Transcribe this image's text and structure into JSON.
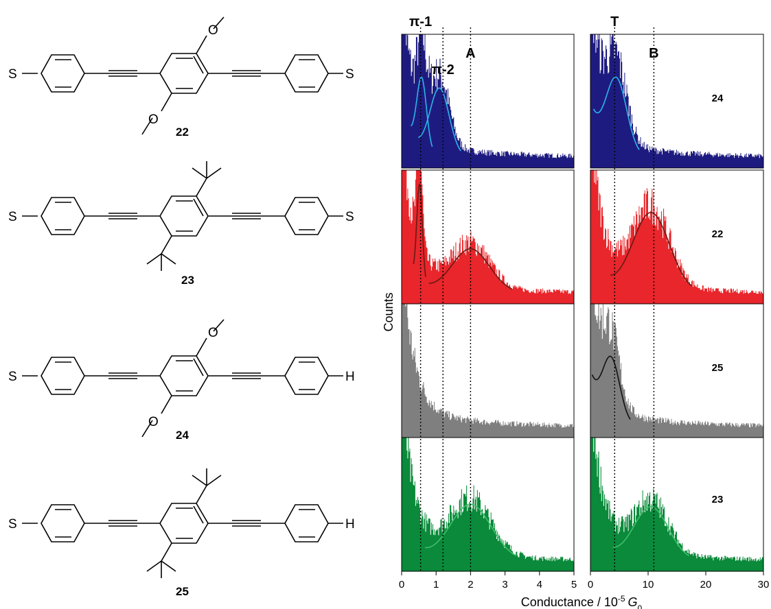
{
  "molecules": [
    {
      "id": "22",
      "left_end": "S",
      "right_end": "S",
      "substituent": "methoxy"
    },
    {
      "id": "23",
      "left_end": "S",
      "right_end": "S",
      "substituent": "tert-butyl"
    },
    {
      "id": "24",
      "left_end": "S",
      "right_end": "H",
      "substituent": "methoxy"
    },
    {
      "id": "25",
      "left_end": "S",
      "right_end": "H",
      "substituent": "tert-butyl"
    }
  ],
  "chart_data": {
    "type": "bar",
    "ylabel": "Counts",
    "xlabel_prefix": "Conductance / 10",
    "xlabel_exp": "-5",
    "xlabel_unit": "G",
    "xlabel_sub": "0",
    "colors": {
      "24": "#1e1b80",
      "22": "#e8262b",
      "25": "#7f7f7f",
      "23": "#0a8a3a"
    },
    "fit_colors": {
      "24": "#29b6e8",
      "22": "#6a1a14",
      "25": "#111111",
      "23": "#3fbf6a"
    },
    "row_order": [
      "24",
      "22",
      "25",
      "23"
    ],
    "panels": [
      {
        "xlim": [
          0,
          5
        ],
        "xticks": [
          0,
          1,
          2,
          3,
          4,
          5
        ],
        "tick_labels": [
          "0",
          "1",
          "2",
          "3",
          "4",
          "5"
        ],
        "peak_lines": [
          {
            "label": "π-1",
            "x": 0.55
          },
          {
            "label": "π-2",
            "x": 1.2
          },
          {
            "label": "A",
            "x": 2.0
          }
        ],
        "fits": {
          "24": [
            {
              "center": 0.58,
              "width": 0.14,
              "height": 0.52
            },
            {
              "center": 1.1,
              "width": 0.28,
              "height": 0.5
            }
          ],
          "22": [
            {
              "center": 0.52,
              "width": 0.08,
              "height": 0.72
            },
            {
              "center": 2.0,
              "width": 0.55,
              "height": 0.33
            }
          ],
          "23": [
            {
              "center": 2.0,
              "width": 0.6,
              "height": 0.42
            }
          ]
        }
      },
      {
        "xlim": [
          0,
          30
        ],
        "xticks": [
          0,
          10,
          20,
          30
        ],
        "tick_labels": [
          "0",
          "10",
          "20",
          "30"
        ],
        "peak_lines": [
          {
            "label": "T",
            "x": 4.2
          },
          {
            "label": "B",
            "x": 11.0
          }
        ],
        "fits": {
          "24": [
            {
              "center": 4.5,
              "width": 1.8,
              "height": 0.55
            }
          ],
          "22": [
            {
              "center": 10.5,
              "width": 3.2,
              "height": 0.6
            }
          ],
          "25": [
            {
              "center": 3.6,
              "width": 1.5,
              "height": 0.45
            }
          ],
          "23": [
            {
              "center": 10.5,
              "width": 3.0,
              "height": 0.4
            }
          ]
        }
      }
    ]
  }
}
